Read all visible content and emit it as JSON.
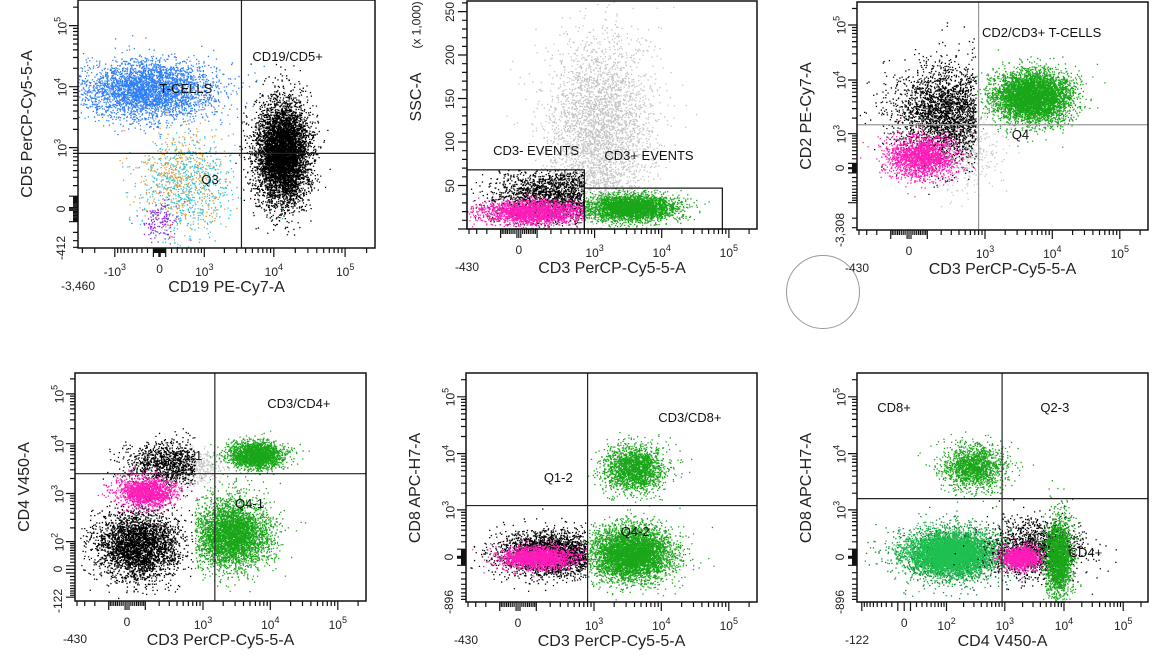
{
  "chart_data": [
    {
      "type": "scatter",
      "x_axis": {
        "title": "CD19 PE-Cy7-A",
        "scale": "biex",
        "w": 500,
        "min": -3460,
        "max": 262144,
        "ticks": [
          {
            "v": -3460,
            "label": "-3,460",
            "exp": "",
            "row": 2
          },
          {
            "v": -1000,
            "label": "-10",
            "exp": "3"
          },
          {
            "v": 0,
            "label": "0",
            "exp": ""
          },
          {
            "v": 1000,
            "label": "10",
            "exp": "3"
          },
          {
            "v": 10000,
            "label": "10",
            "exp": "4"
          },
          {
            "v": 100000,
            "label": "10",
            "exp": "5"
          }
        ]
      },
      "y_axis": {
        "title": "CD5 PerCP-Cy5-5-A",
        "scale": "biex",
        "w": 200,
        "min": -412,
        "max": 262144,
        "ticks": [
          {
            "v": -412,
            "label": "-412",
            "exp": ""
          },
          {
            "v": 0,
            "label": "0",
            "exp": ""
          },
          {
            "v": 1000,
            "label": "10",
            "exp": "3"
          },
          {
            "v": 10000,
            "label": "10",
            "exp": "4"
          },
          {
            "v": 100000,
            "label": "10",
            "exp": "5"
          }
        ]
      },
      "quadrant": {
        "x": 3500,
        "y": 800,
        "color": "#222222"
      },
      "gates": [
        {
          "label": "CD19/CD5+",
          "at": [
            5000,
            30000
          ]
        },
        {
          "label": "T-CELLS",
          "at": [
            0,
            9000
          ]
        },
        {
          "label": "Q3",
          "at": [
            900,
            250
          ]
        }
      ],
      "rect_gates": [],
      "populations": [
        {
          "name": "T-cells",
          "color": "#2f7ff5",
          "n": 3500,
          "x": -200,
          "y": 9000,
          "sx": 1.1,
          "sy": 0.55
        },
        {
          "name": "orange-events",
          "color": "#e89a2c",
          "n": 500,
          "x": 400,
          "y": 300,
          "sx": 0.7,
          "sy": 0.9
        },
        {
          "name": "cyan-events",
          "color": "#2cc4e0",
          "n": 600,
          "x": 500,
          "y": 200,
          "sx": 0.8,
          "sy": 0.9
        },
        {
          "name": "purple-events",
          "color": "#8a2be2",
          "n": 150,
          "x": 0,
          "y": -100,
          "sx": 0.3,
          "sy": 0.4
        },
        {
          "name": "B-cells",
          "color": "#000000",
          "n": 6000,
          "x": 13000,
          "y": 800,
          "sx": 0.42,
          "sy": 0.95
        }
      ]
    },
    {
      "type": "scatter",
      "x_axis": {
        "title": "CD3 PerCP-Cy5-5-A",
        "scale": "biex",
        "w": 150,
        "min": -430,
        "max": 262144,
        "ticks": [
          {
            "v": -430,
            "label": "-430",
            "exp": "",
            "row": 2
          },
          {
            "v": 0,
            "label": "0",
            "exp": ""
          },
          {
            "v": 1000,
            "label": "10",
            "exp": "3"
          },
          {
            "v": 10000,
            "label": "10",
            "exp": "4"
          },
          {
            "v": 100000,
            "label": "10",
            "exp": "5"
          }
        ]
      },
      "y_axis": {
        "title": "SSC-A",
        "unit": "(x 1,000)",
        "scale": "linear",
        "w": 1,
        "min": 0,
        "max": 262144,
        "ticks": [
          {
            "v": 50000,
            "label": "50",
            "exp": ""
          },
          {
            "v": 100000,
            "label": "100",
            "exp": ""
          },
          {
            "v": 150000,
            "label": "150",
            "exp": ""
          },
          {
            "v": 200000,
            "label": "200",
            "exp": ""
          },
          {
            "v": 250000,
            "label": "250",
            "exp": ""
          }
        ]
      },
      "quadrant": null,
      "gates": [
        {
          "label": "CD3- EVENTS",
          "at": [
            -150,
            88000
          ]
        },
        {
          "label": "CD3+ EVENTS",
          "at": [
            1400,
            83000
          ]
        }
      ],
      "rect_gates": [
        {
          "name": "CD3- EVENTS",
          "x": [
            -430,
            700
          ],
          "y": [
            0,
            68000
          ]
        },
        {
          "name": "CD3+ EVENTS",
          "x": [
            700,
            80000
          ],
          "y": [
            0,
            47000
          ]
        }
      ],
      "populations": [
        {
          "name": "gray-events",
          "color": "#c4c4c4",
          "n": 3500,
          "x": 1200,
          "y": 110000,
          "sx": 0.9,
          "sy": 55000
        },
        {
          "name": "CD3- black",
          "color": "#000000",
          "n": 2000,
          "x": 200,
          "y": 38000,
          "sx": 1.0,
          "sy": 16000,
          "clip": [
            -430,
            700,
            0,
            68000
          ]
        },
        {
          "name": "CD3- magenta",
          "color": "#ff1cb8",
          "n": 2200,
          "x": 80,
          "y": 20000,
          "sx": 0.9,
          "sy": 7000,
          "clip": [
            -430,
            700,
            0,
            68000
          ]
        },
        {
          "name": "CD3+ green",
          "color": "#19a619",
          "n": 3500,
          "x": 3500,
          "y": 25000,
          "sx": 0.75,
          "sy": 7500,
          "clip": [
            700,
            80000,
            0,
            47000
          ]
        }
      ]
    },
    {
      "type": "scatter",
      "x_axis": {
        "title": "CD3 PerCP-Cy5-5-A",
        "scale": "biex",
        "w": 150,
        "min": -430,
        "max": 262144,
        "ticks": [
          {
            "v": -430,
            "label": "-430",
            "exp": "",
            "row": 2
          },
          {
            "v": 0,
            "label": "0",
            "exp": ""
          },
          {
            "v": 1000,
            "label": "10",
            "exp": "3"
          },
          {
            "v": 10000,
            "label": "10",
            "exp": "4"
          },
          {
            "v": 100000,
            "label": "10",
            "exp": "5"
          }
        ]
      },
      "y_axis": {
        "title": "CD2 PE-Cy7-A",
        "scale": "biex",
        "w": 500,
        "min": -3308,
        "max": 262144,
        "ticks": [
          {
            "v": -3308,
            "label": "-3,308",
            "exp": ""
          },
          {
            "v": 0,
            "label": "0",
            "exp": ""
          },
          {
            "v": 1000,
            "label": "10",
            "exp": "3"
          },
          {
            "v": 10000,
            "label": "10",
            "exp": "4"
          },
          {
            "v": 100000,
            "label": "10",
            "exp": "5"
          }
        ]
      },
      "quadrant": {
        "x": 800,
        "y": 1500,
        "color": "#999999"
      },
      "gates": [
        {
          "label": "CD2/CD3+ T-CELLS",
          "at": [
            900,
            70000
          ]
        },
        {
          "label": "Q4",
          "at": [
            2500,
            900
          ]
        }
      ],
      "rect_gates": [],
      "populations": [
        {
          "name": "gray-events",
          "color": "#c8c8c8",
          "n": 400,
          "x": 500,
          "y": 400,
          "sx": 0.6,
          "sy": 0.8
        },
        {
          "name": "black-events",
          "color": "#000000",
          "n": 2800,
          "x": 250,
          "y": 2500,
          "sx": 0.9,
          "sy": 1.0,
          "clip": [
            -430,
            720,
            -3308,
            262144
          ]
        },
        {
          "name": "magenta-events",
          "color": "#ff1cb8",
          "n": 1800,
          "x": 60,
          "y": 250,
          "sx": 0.6,
          "sy": 0.45
        },
        {
          "name": "green-T-cells",
          "color": "#19a619",
          "n": 5000,
          "x": 5000,
          "y": 5000,
          "sx": 0.65,
          "sy": 0.55,
          "clip": [
            720,
            262144,
            -3308,
            262144
          ]
        }
      ]
    },
    {
      "type": "scatter",
      "x_axis": {
        "title": "CD3 PerCP-Cy5-5-A",
        "scale": "biex",
        "w": 150,
        "min": -430,
        "max": 262144,
        "ticks": [
          {
            "v": -430,
            "label": "-430",
            "exp": "",
            "row": 2
          },
          {
            "v": 0,
            "label": "0",
            "exp": ""
          },
          {
            "v": 1000,
            "label": "10",
            "exp": "3"
          },
          {
            "v": 10000,
            "label": "10",
            "exp": "4"
          },
          {
            "v": 100000,
            "label": "10",
            "exp": "5"
          }
        ]
      },
      "y_axis": {
        "title": "CD4 V450-A",
        "scale": "biex",
        "w": 60,
        "min": -122,
        "max": 262144,
        "ticks": [
          {
            "v": -122,
            "label": "-122",
            "exp": ""
          },
          {
            "v": 0,
            "label": "0",
            "exp": ""
          },
          {
            "v": 100,
            "label": "10",
            "exp": "2"
          },
          {
            "v": 1000,
            "label": "10",
            "exp": "3"
          },
          {
            "v": 10000,
            "label": "10",
            "exp": "4"
          },
          {
            "v": 100000,
            "label": "10",
            "exp": "5"
          }
        ]
      },
      "quadrant": {
        "x": 1500,
        "y": 2500,
        "color": "#222222"
      },
      "gates": [
        {
          "label": "CD3/CD4+",
          "at": [
            9000,
            60000
          ]
        },
        {
          "label": "Q1-1",
          "at": [
            350,
            5500
          ]
        },
        {
          "label": "Q4-1",
          "at": [
            3000,
            600
          ]
        }
      ],
      "rect_gates": [],
      "populations": [
        {
          "name": "gray-events",
          "color": "#c8c8c8",
          "n": 300,
          "x": 900,
          "y": 3500,
          "sx": 0.4,
          "sy": 0.4
        },
        {
          "name": "black-low",
          "color": "#000000",
          "n": 3200,
          "x": 60,
          "y": 80,
          "sx": 0.7,
          "sy": 0.8,
          "clip": [
            -430,
            750,
            -122,
            262144
          ]
        },
        {
          "name": "black-high",
          "color": "#000000",
          "n": 1200,
          "x": 300,
          "y": 4000,
          "sx": 0.8,
          "sy": 0.5,
          "clip": [
            -430,
            750,
            -122,
            262144
          ]
        },
        {
          "name": "magenta-events",
          "color": "#ff1cb8",
          "n": 1500,
          "x": 100,
          "y": 1100,
          "sx": 0.5,
          "sy": 0.35
        },
        {
          "name": "green-CD4",
          "color": "#19a619",
          "n": 2200,
          "x": 6000,
          "y": 6000,
          "sx": 0.45,
          "sy": 0.3
        },
        {
          "name": "green-low",
          "color": "#19a619",
          "n": 4200,
          "x": 2600,
          "y": 150,
          "sx": 0.65,
          "sy": 0.8,
          "clip": [
            750,
            262144,
            -122,
            262144
          ]
        }
      ]
    },
    {
      "type": "scatter",
      "x_axis": {
        "title": "CD3 PerCP-Cy5-5-A",
        "scale": "biex",
        "w": 150,
        "min": -430,
        "max": 262144,
        "ticks": [
          {
            "v": -430,
            "label": "-430",
            "exp": "",
            "row": 2
          },
          {
            "v": 0,
            "label": "0",
            "exp": ""
          },
          {
            "v": 1000,
            "label": "10",
            "exp": "3"
          },
          {
            "v": 10000,
            "label": "10",
            "exp": "4"
          },
          {
            "v": 100000,
            "label": "10",
            "exp": "5"
          }
        ]
      },
      "y_axis": {
        "title": "CD8 APC-H7-A",
        "scale": "biex",
        "w": 300,
        "min": -896,
        "max": 262144,
        "ticks": [
          {
            "v": -896,
            "label": "-896",
            "exp": ""
          },
          {
            "v": 0,
            "label": "0",
            "exp": ""
          },
          {
            "v": 1000,
            "label": "10",
            "exp": "3"
          },
          {
            "v": 10000,
            "label": "10",
            "exp": "4"
          },
          {
            "v": 100000,
            "label": "10",
            "exp": "5"
          }
        ]
      },
      "quadrant": {
        "x": 800,
        "y": 1200,
        "color": "#222222"
      },
      "gates": [
        {
          "label": "CD3/CD8+",
          "at": [
            9000,
            40000
          ]
        },
        {
          "label": "Q1-2",
          "at": [
            150,
            3500
          ]
        },
        {
          "label": "Q4-2",
          "at": [
            2500,
            350
          ]
        }
      ],
      "rect_gates": [],
      "populations": [
        {
          "name": "black-events",
          "color": "#000000",
          "n": 2800,
          "x": 200,
          "y": 50,
          "sx": 0.9,
          "sy": 0.45,
          "clip": [
            -430,
            760,
            -896,
            262144
          ]
        },
        {
          "name": "magenta-events",
          "color": "#ff1cb8",
          "n": 2200,
          "x": 100,
          "y": 0,
          "sx": 0.6,
          "sy": 0.22
        },
        {
          "name": "green-CD8",
          "color": "#19a619",
          "n": 2000,
          "x": 4000,
          "y": 5500,
          "sx": 0.5,
          "sy": 0.45
        },
        {
          "name": "green-low",
          "color": "#19a619",
          "n": 5000,
          "x": 3500,
          "y": 50,
          "sx": 0.7,
          "sy": 0.55,
          "clip": [
            800,
            262144,
            -896,
            262144
          ]
        }
      ]
    },
    {
      "type": "scatter",
      "x_axis": {
        "title": "CD4 V450-A",
        "scale": "biex",
        "w": 40,
        "min": -122,
        "max": 262144,
        "ticks": [
          {
            "v": -122,
            "label": "-122",
            "exp": "",
            "row": 2
          },
          {
            "v": 0,
            "label": "0",
            "exp": ""
          },
          {
            "v": 100,
            "label": "10",
            "exp": "2"
          },
          {
            "v": 1000,
            "label": "10",
            "exp": "3"
          },
          {
            "v": 10000,
            "label": "10",
            "exp": "4"
          },
          {
            "v": 100000,
            "label": "10",
            "exp": "5"
          }
        ]
      },
      "y_axis": {
        "title": "CD8 APC-H7-A",
        "scale": "biex",
        "w": 300,
        "min": -896,
        "max": 262144,
        "ticks": [
          {
            "v": -896,
            "label": "-896",
            "exp": ""
          },
          {
            "v": 0,
            "label": "0",
            "exp": ""
          },
          {
            "v": 1000,
            "label": "10",
            "exp": "3"
          },
          {
            "v": 10000,
            "label": "10",
            "exp": "4"
          },
          {
            "v": 100000,
            "label": "10",
            "exp": "5"
          }
        ]
      },
      "quadrant": {
        "x": 900,
        "y": 1600,
        "color": "#222222"
      },
      "gates": [
        {
          "label": "CD8+",
          "at": [
            -50,
            60000
          ]
        },
        {
          "label": "Q2-3",
          "at": [
            4000,
            60000
          ]
        },
        {
          "label": "CD4+",
          "at": [
            12000,
            40
          ]
        }
      ],
      "rect_gates": [],
      "populations": [
        {
          "name": "green-dark",
          "color": "#0e8a2e",
          "n": 2500,
          "x": 120,
          "y": 50,
          "sx": 1.0,
          "sy": 0.55
        },
        {
          "name": "green-CD4-CD8-",
          "color": "#1fc052",
          "n": 4500,
          "x": 120,
          "y": 50,
          "sx": 0.8,
          "sy": 0.4
        },
        {
          "name": "green-CD8",
          "color": "#19a619",
          "n": 1600,
          "x": 300,
          "y": 6000,
          "sx": 0.6,
          "sy": 0.45
        },
        {
          "name": "black-events",
          "color": "#000000",
          "n": 1500,
          "x": 3500,
          "y": 100,
          "sx": 0.9,
          "sy": 0.6
        },
        {
          "name": "magenta-events",
          "color": "#ff1cb8",
          "n": 1400,
          "x": 1800,
          "y": 0,
          "sx": 0.35,
          "sy": 0.22
        },
        {
          "name": "green-CD4",
          "color": "#19a619",
          "n": 2200,
          "x": 8000,
          "y": 0,
          "sx": 0.25,
          "sy": 0.8
        }
      ]
    }
  ]
}
